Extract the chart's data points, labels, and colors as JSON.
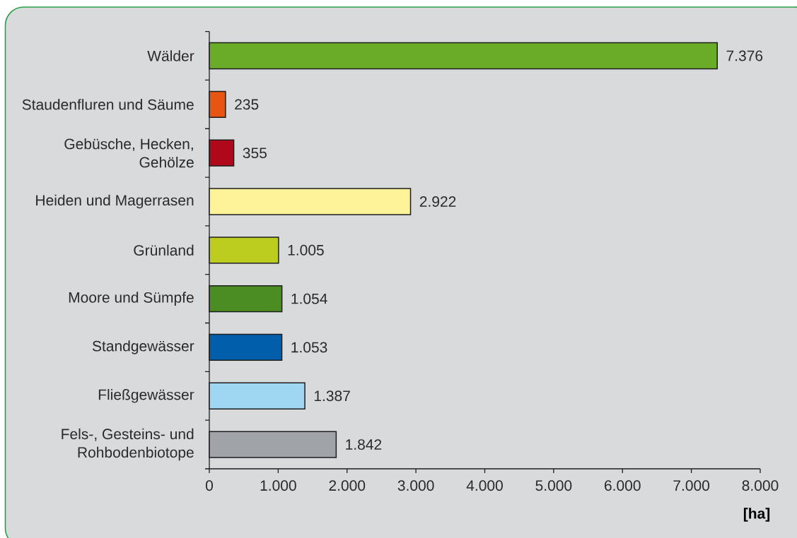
{
  "chart_data": {
    "type": "bar",
    "orientation": "horizontal",
    "xlabel": "[ha]",
    "categories": [
      "Wälder",
      "Staudenfluren und Säume",
      "Gebüsche, Hecken, Gehölze",
      "Heiden und Magerrasen",
      "Grünland",
      "Moore und Sümpfe",
      "Standgewässer",
      "Fließgewässer",
      "Fels-, Gesteins- und Rohbodenbiotope"
    ],
    "values": [
      7376,
      235,
      355,
      2922,
      1005,
      1054,
      1053,
      1387,
      1842
    ],
    "colors": [
      "#6aab27",
      "#e65512",
      "#b0081b",
      "#fef399",
      "#bccd1f",
      "#4b8d23",
      "#015eaa",
      "#9fd6f1",
      "#a0a4a8"
    ],
    "value_labels": [
      "7.376",
      "235",
      "355",
      "2.922",
      "1.005",
      "1.054",
      "1.053",
      "1.387",
      "1.842"
    ],
    "xlim": [
      0,
      8000
    ],
    "xticks": [
      0,
      {
        "value": 1000,
        "label": "1.000"
      },
      {
        "value": 2000,
        "label": "2.000"
      },
      {
        "value": 3000,
        "label": "3.000"
      },
      {
        "value": 4000,
        "label": "4.000"
      },
      {
        "value": 5000,
        "label": "5.000"
      },
      {
        "value": 6000,
        "label": "6.000"
      },
      {
        "value": 7000,
        "label": "7.000"
      },
      {
        "value": 8000,
        "label": "8.000"
      }
    ]
  }
}
